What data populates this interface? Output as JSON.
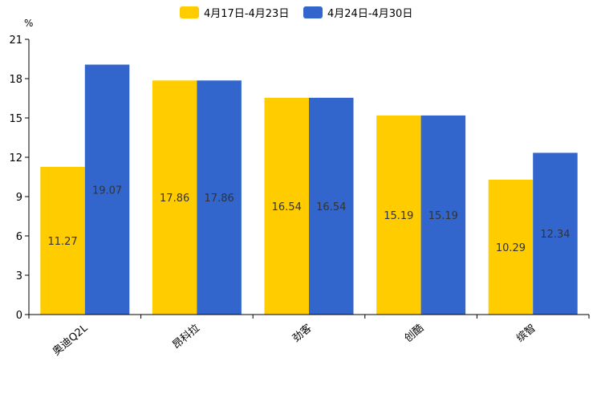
{
  "chart_data": {
    "type": "bar",
    "unit": "%",
    "ylim": [
      0,
      21
    ],
    "yticks": [
      0,
      3,
      6,
      9,
      12,
      15,
      18,
      21
    ],
    "categories": [
      "奥迪Q2L",
      "昂科拉",
      "劲客",
      "创酷",
      "缤智"
    ],
    "series": [
      {
        "name": "4月17日-4月23日",
        "color": "#FFCC00",
        "values": [
          11.27,
          17.86,
          16.54,
          15.19,
          10.29
        ]
      },
      {
        "name": "4月24日-4月30日",
        "color": "#3366CC",
        "values": [
          19.07,
          17.86,
          16.54,
          15.19,
          12.34
        ]
      }
    ],
    "legend_position": "top-center",
    "grid": false
  }
}
